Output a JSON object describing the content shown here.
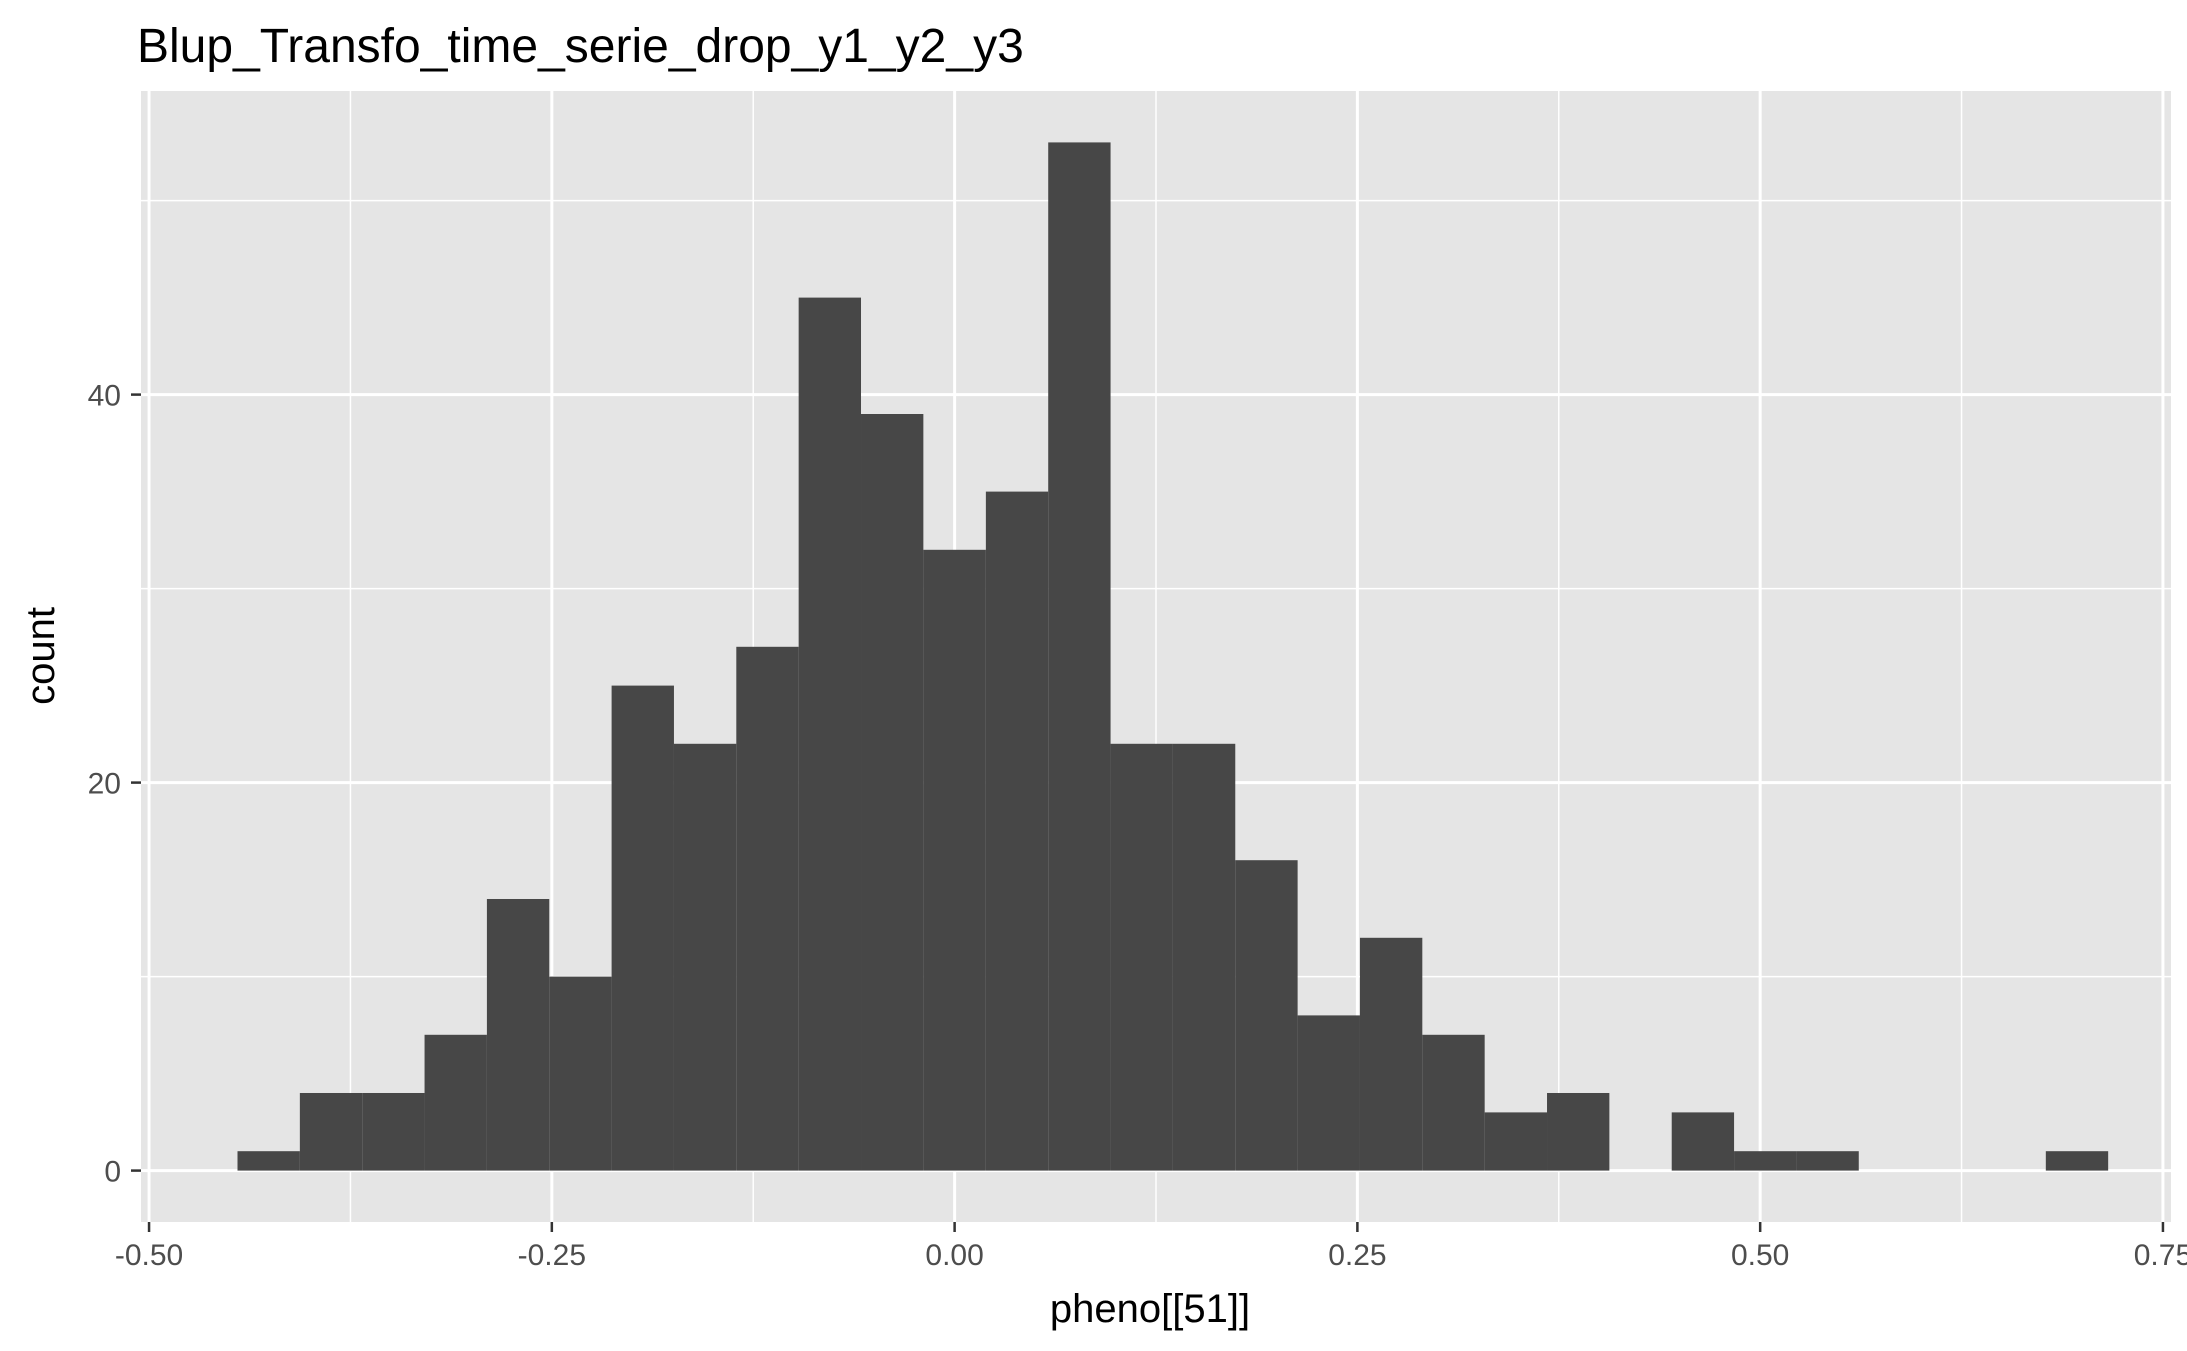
{
  "chart_data": {
    "type": "bar",
    "title": "Blup_Transfo_time_serie_drop_y1_y2_y3",
    "xlabel": "pheno[[51]]",
    "ylabel": "count",
    "xlim": [
      -0.505,
      0.755
    ],
    "ylim": [
      -2.65,
      55.65
    ],
    "x_ticks": [
      -0.5,
      -0.25,
      0.0,
      0.25,
      0.5,
      0.75
    ],
    "x_tick_labels": [
      "-0.50",
      "-0.25",
      "0.00",
      "0.25",
      "0.50",
      "0.75"
    ],
    "y_ticks": [
      0,
      20,
      40
    ],
    "y_tick_labels": [
      "0",
      "20",
      "40"
    ],
    "grid": true,
    "bar_color": "#474747",
    "panel_color": "#e5e5e5",
    "bins": [
      {
        "x0": -0.4451,
        "x1": -0.4064,
        "count": 1
      },
      {
        "x0": -0.4064,
        "x1": -0.3677,
        "count": 4
      },
      {
        "x0": -0.3677,
        "x1": -0.329,
        "count": 4
      },
      {
        "x0": -0.329,
        "x1": -0.2903,
        "count": 7
      },
      {
        "x0": -0.2903,
        "x1": -0.2516,
        "count": 14
      },
      {
        "x0": -0.2516,
        "x1": -0.2129,
        "count": 10
      },
      {
        "x0": -0.2129,
        "x1": -0.1742,
        "count": 25
      },
      {
        "x0": -0.1742,
        "x1": -0.1355,
        "count": 22
      },
      {
        "x0": -0.1355,
        "x1": -0.0968,
        "count": 27
      },
      {
        "x0": -0.0968,
        "x1": -0.0581,
        "count": 45
      },
      {
        "x0": -0.0581,
        "x1": -0.0194,
        "count": 39
      },
      {
        "x0": -0.0194,
        "x1": 0.0194,
        "count": 32
      },
      {
        "x0": 0.0194,
        "x1": 0.0581,
        "count": 35
      },
      {
        "x0": 0.0581,
        "x1": 0.0968,
        "count": 53
      },
      {
        "x0": 0.0968,
        "x1": 0.1355,
        "count": 22
      },
      {
        "x0": 0.1355,
        "x1": 0.1742,
        "count": 22
      },
      {
        "x0": 0.1742,
        "x1": 0.2129,
        "count": 16
      },
      {
        "x0": 0.2129,
        "x1": 0.2516,
        "count": 8
      },
      {
        "x0": 0.2516,
        "x1": 0.2903,
        "count": 12
      },
      {
        "x0": 0.2903,
        "x1": 0.329,
        "count": 7
      },
      {
        "x0": 0.329,
        "x1": 0.3677,
        "count": 3
      },
      {
        "x0": 0.3677,
        "x1": 0.4064,
        "count": 4
      },
      {
        "x0": 0.4064,
        "x1": 0.4451,
        "count": 0
      },
      {
        "x0": 0.4451,
        "x1": 0.4838,
        "count": 3
      },
      {
        "x0": 0.4838,
        "x1": 0.5225,
        "count": 1
      },
      {
        "x0": 0.5225,
        "x1": 0.5612,
        "count": 1
      },
      {
        "x0": 0.5612,
        "x1": 0.5999,
        "count": 0
      },
      {
        "x0": 0.5999,
        "x1": 0.6386,
        "count": 0
      },
      {
        "x0": 0.6386,
        "x1": 0.6773,
        "count": 0
      },
      {
        "x0": 0.6773,
        "x1": 0.716,
        "count": 1
      }
    ]
  }
}
